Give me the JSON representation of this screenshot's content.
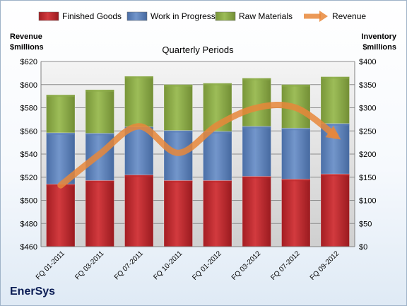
{
  "brand": "EnerSys",
  "chart_data": {
    "type": "bar",
    "stacked": true,
    "title": "Quarterly Periods",
    "categories": [
      "FQ 01-2011",
      "FQ 03-2011",
      "FQ 07-2011",
      "FQ 10-2011",
      "FQ 01-2012",
      "FQ 03-2012",
      "FQ 07-2012",
      "FQ 09-2012"
    ],
    "left_axis": {
      "label_line1": "Revenue",
      "label_line2": "$millions",
      "ylim": [
        460,
        620
      ],
      "ticks": [
        "$460",
        "$480",
        "$500",
        "$520",
        "$540",
        "$560",
        "$580",
        "$600",
        "$620"
      ]
    },
    "right_axis": {
      "label_line1": "Inventory",
      "label_line2": "$millions",
      "ylim": [
        0,
        400
      ],
      "ticks": [
        "$0",
        "$50",
        "$100",
        "$150",
        "$200",
        "$250",
        "$300",
        "$350",
        "$400"
      ]
    },
    "series": [
      {
        "name": "Finished Goods",
        "axis": "right",
        "color": "#c0282c",
        "values": [
          135,
          143,
          155,
          143,
          143,
          152,
          146,
          157
        ]
      },
      {
        "name": "Work in Progress",
        "axis": "right",
        "color": "#5d80b8",
        "values": [
          111,
          102,
          104,
          108,
          106,
          108,
          110,
          109
        ]
      },
      {
        "name": "Raw Materials",
        "axis": "right",
        "color": "#8cab4a",
        "values": [
          82,
          94,
          109,
          99,
          104,
          104,
          94,
          101
        ]
      },
      {
        "name": "Revenue",
        "axis": "left",
        "type": "line",
        "color": "#e8873a",
        "values": [
          513,
          540,
          564,
          541,
          565,
          580,
          580,
          556
        ]
      }
    ],
    "legend_position": "top",
    "grid": true
  }
}
